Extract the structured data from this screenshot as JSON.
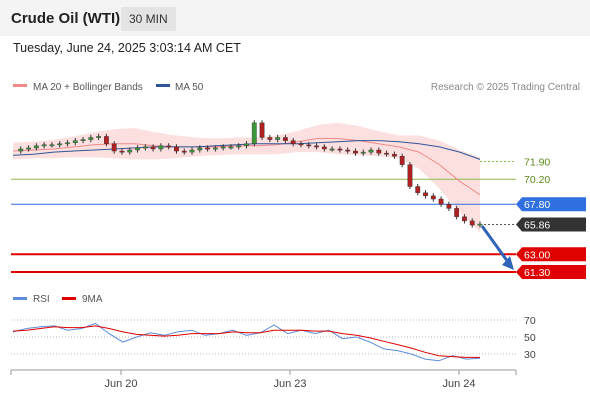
{
  "header": {
    "title": "Crude Oil (WTI)",
    "timeframe": "30 MIN",
    "datetime": "Tuesday, June 24, 2025 3:03:14 AM CET"
  },
  "legend": {
    "bollinger_label": "MA 20 + Bollinger Bands",
    "ma50_label": "MA 50",
    "copyright": "Research © 2025 Trading Central",
    "rsi_label": "RSI",
    "rsi_ma_label": "9MA"
  },
  "colors": {
    "bollinger": "#f08a8a",
    "ma50": "#2f5597",
    "support": "#e00000",
    "resistance": "#8dbb4a",
    "pivot": "#2f6fe0",
    "last_price": "#333333",
    "rsi": "#5b8dd9",
    "rsi_ma": "#e00000"
  },
  "chart_data": [
    {
      "type": "candlestick",
      "x_ticks": [
        "Jun 20",
        "Jun 23",
        "Jun 24"
      ],
      "ylim": [
        60.5,
        76.5
      ],
      "levels": [
        {
          "value": 71.9,
          "label": "71.90",
          "kind": "resistance"
        },
        {
          "value": 70.2,
          "label": "70.20",
          "kind": "resistance"
        },
        {
          "value": 67.8,
          "label": "67.80",
          "kind": "pivot"
        },
        {
          "value": 65.86,
          "label": "65.86",
          "kind": "last"
        },
        {
          "value": 63.0,
          "label": "63.00",
          "kind": "support"
        },
        {
          "value": 61.3,
          "label": "61.30",
          "kind": "support"
        }
      ],
      "series": [
        {
          "name": "MA 20 + Bollinger Bands",
          "values": [
            72.9,
            73.0,
            73.1,
            73.3,
            73.5,
            73.6,
            73.6,
            73.4,
            73.3,
            73.3,
            73.3,
            73.4,
            73.4,
            73.5,
            73.8,
            74.1,
            74.1,
            73.9,
            73.6,
            73.3,
            72.8,
            71.6,
            70.0,
            68.7
          ]
        },
        {
          "name": "MA 50",
          "values": [
            72.5,
            72.6,
            72.8,
            72.9,
            73.0,
            73.1,
            73.2,
            73.3,
            73.3,
            73.3,
            73.4,
            73.5,
            73.6,
            73.6,
            73.6,
            73.7,
            73.8,
            73.9,
            73.9,
            73.8,
            73.6,
            73.3,
            72.8,
            72.1
          ]
        }
      ]
    },
    {
      "type": "line",
      "y_ticks": [
        70,
        50,
        30
      ],
      "ylim": [
        10,
        80
      ],
      "series": [
        {
          "name": "RSI",
          "values": [
            56,
            60,
            62,
            63,
            58,
            60,
            66,
            54,
            44,
            50,
            55,
            52,
            56,
            58,
            52,
            54,
            58,
            52,
            55,
            64,
            54,
            58,
            54,
            58,
            48,
            50,
            44,
            36,
            34,
            30,
            24,
            22,
            28,
            24,
            25
          ]
        },
        {
          "name": "9MA",
          "values": [
            57,
            58,
            60,
            62,
            61,
            61,
            63,
            60,
            56,
            53,
            52,
            51,
            52,
            54,
            54,
            54,
            56,
            55,
            55,
            58,
            58,
            58,
            57,
            57,
            54,
            52,
            49,
            45,
            41,
            37,
            32,
            28,
            27,
            26,
            26
          ]
        }
      ]
    }
  ]
}
